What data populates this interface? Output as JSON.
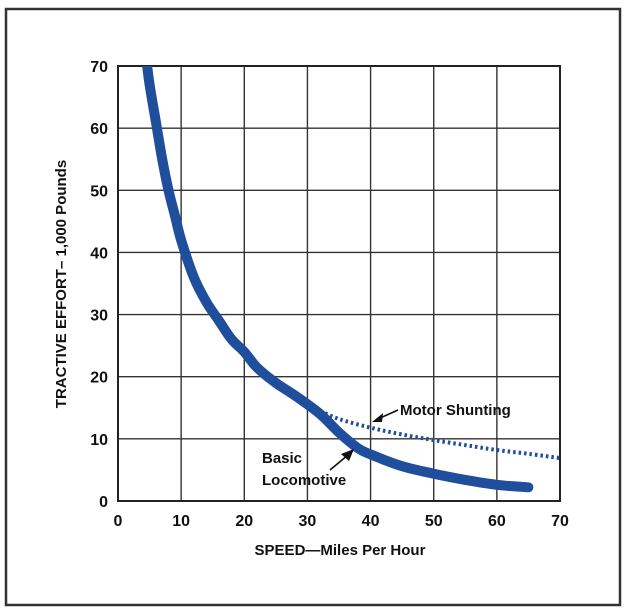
{
  "chart_data": {
    "type": "line",
    "title": "",
    "xlabel": "SPEED—Miles Per Hour",
    "ylabel": "TRACTIVE EFFORT– 1,000 Pounds",
    "xlim": [
      0,
      70
    ],
    "ylim": [
      0,
      70
    ],
    "xticks": [
      "0",
      "10",
      "20",
      "30",
      "40",
      "50",
      "60",
      "70"
    ],
    "yticks": [
      "0",
      "10",
      "20",
      "30",
      "40",
      "50",
      "60",
      "70"
    ],
    "grid": true,
    "legend": "none",
    "series": [
      {
        "name": "Basic Locomotive",
        "style": "solid-thick",
        "color": "#1f4e9c",
        "x": [
          4.5,
          5,
          6,
          7,
          8,
          9,
          10,
          12,
          14,
          16,
          18,
          20,
          22,
          25,
          28,
          32,
          35,
          38,
          40,
          45,
          50,
          55,
          60,
          65
        ],
        "y": [
          71,
          67,
          61,
          55,
          50,
          46,
          42,
          36,
          32,
          29,
          26,
          24,
          21.5,
          19,
          17,
          14,
          11,
          8.5,
          7.5,
          5.6,
          4.4,
          3.4,
          2.6,
          2.2
        ]
      },
      {
        "name": "Motor Shunting",
        "style": "dotted",
        "color": "#1f4e9c",
        "x": [
          32,
          35,
          40,
          45,
          50,
          55,
          60,
          65,
          70
        ],
        "y": [
          14.5,
          13.2,
          11.8,
          10.7,
          9.8,
          9.0,
          8.2,
          7.6,
          6.9
        ]
      }
    ],
    "annotations": [
      {
        "text": "Motor Shunting"
      },
      {
        "text": "Basic"
      },
      {
        "text": "Locomotive"
      }
    ]
  }
}
